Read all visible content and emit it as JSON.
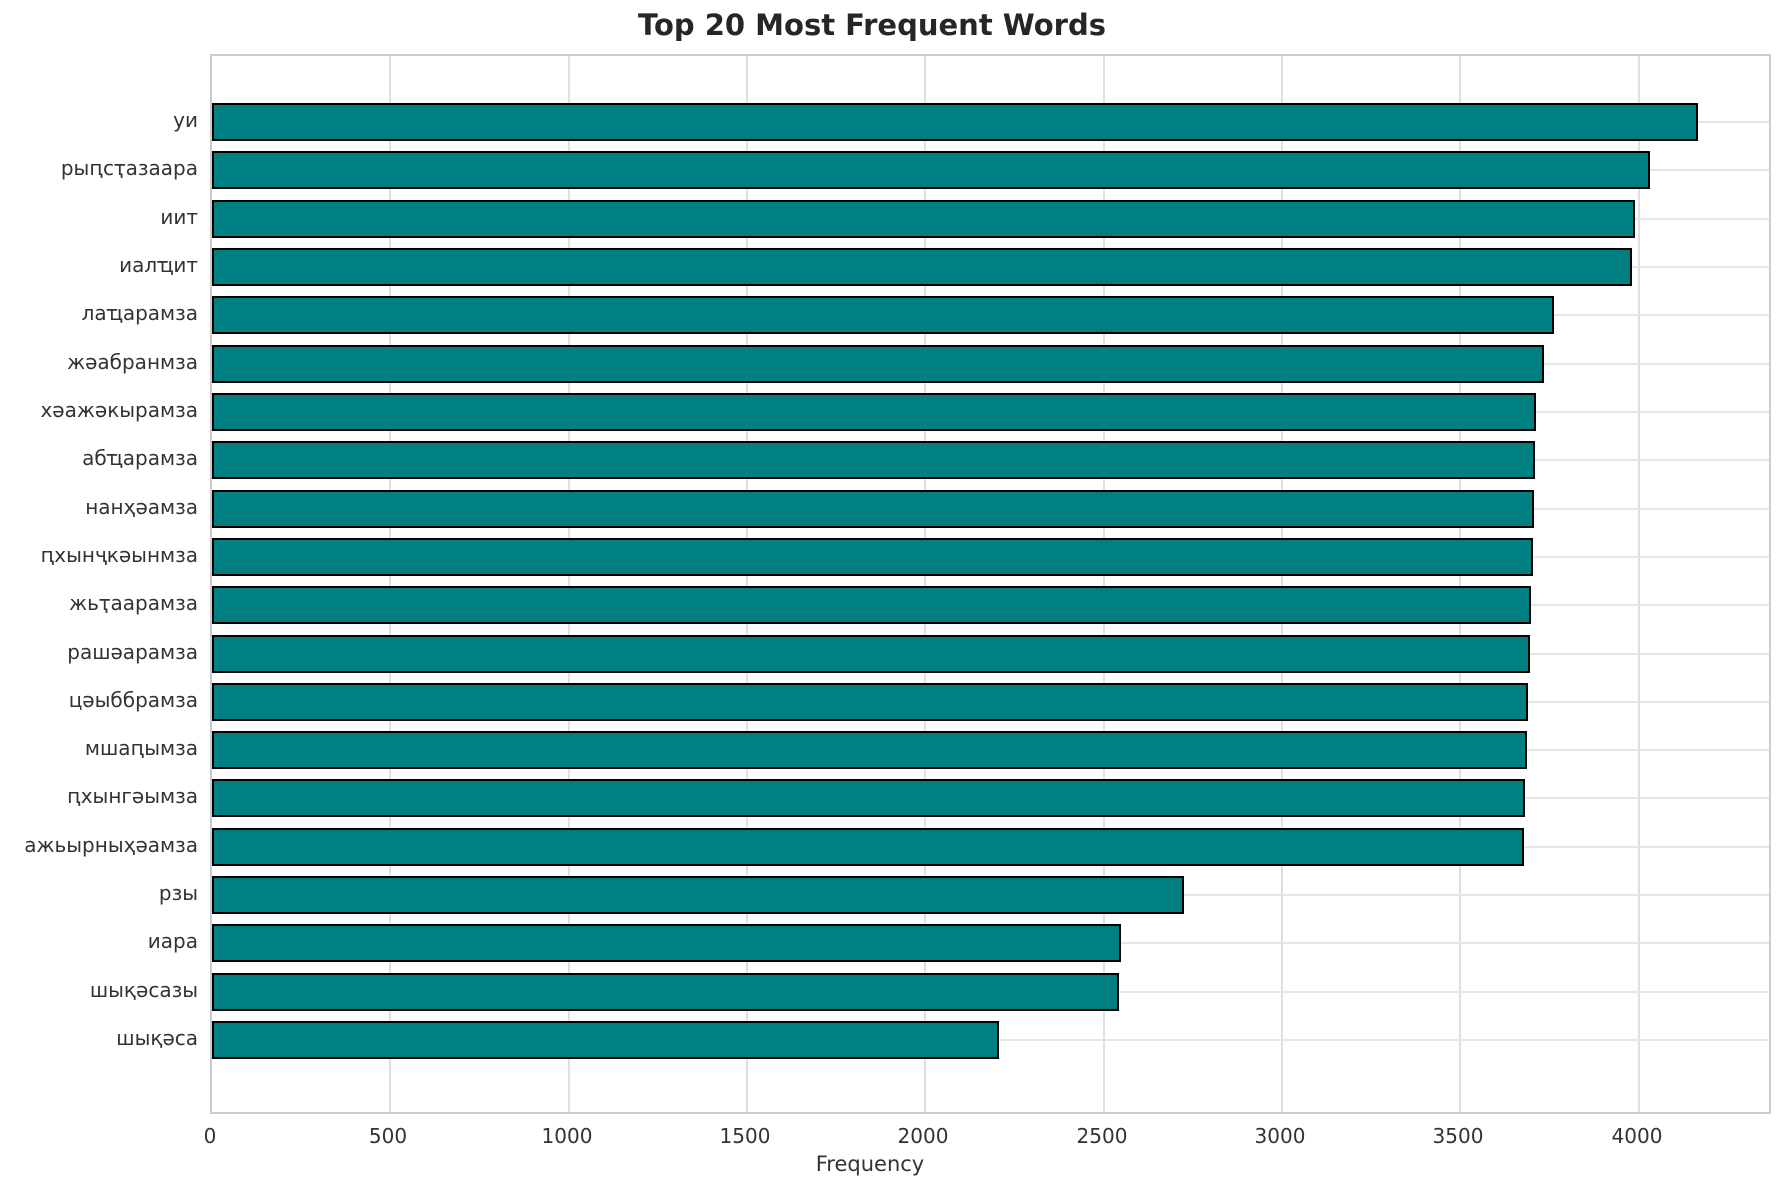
{
  "chart_data": {
    "type": "bar",
    "orientation": "horizontal",
    "title": "Top 20 Most Frequent Words",
    "xlabel": "Frequency",
    "ylabel": "",
    "categories": [
      "уи",
      "рыԥсҭазаара",
      "иит",
      "иалҵит",
      "лаҵарамза",
      "жәабранмза",
      "хәажәкырамза",
      "абҵарамза",
      "нанҳәамза",
      "ԥхынҷкәынмза",
      "жьҭаарамза",
      "рашәарамза",
      "цәыббрамза",
      "мшаԥымза",
      "ԥхынгәымза",
      "ажьырныҳәамза",
      "рзы",
      "иара",
      "шықәсазы",
      "шықәса"
    ],
    "values": [
      4165,
      4030,
      3988,
      3982,
      3763,
      3735,
      3713,
      3709,
      3705,
      3703,
      3697,
      3695,
      3690,
      3686,
      3682,
      3678,
      2726,
      2548,
      2543,
      2205
    ],
    "xticks": [
      0,
      500,
      1000,
      1500,
      2000,
      2500,
      3000,
      3500,
      4000
    ],
    "xlim": [
      0,
      4365
    ],
    "grid": true,
    "legend": "none",
    "bar_color": "#008080",
    "bar_edge_color": "#000000",
    "grid_color": "#e0e0e0",
    "spine_color": "#cccccc",
    "background_color": "#ffffff",
    "title_color": "#262626",
    "tick_label_color": "#333333"
  }
}
